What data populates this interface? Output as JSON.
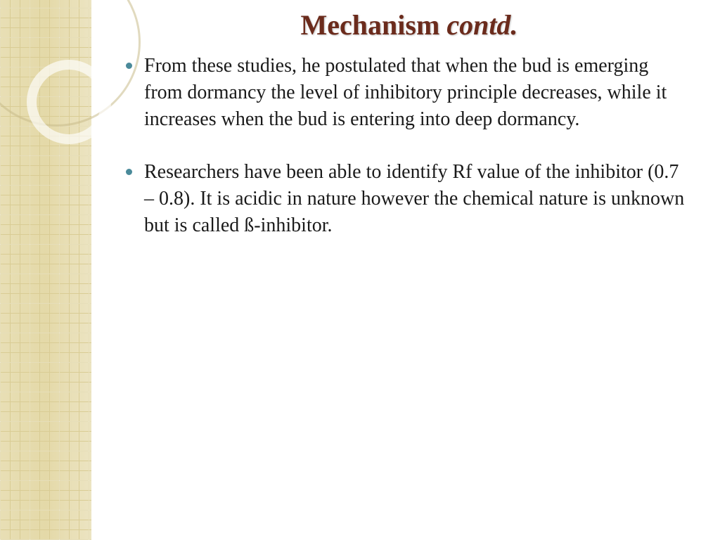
{
  "title": {
    "main": "Mechanism",
    "sub": "contd.",
    "color": "#6b2b1c",
    "fontsize": 40
  },
  "bullets": [
    "From these studies, he postulated that when the bud is emerging from dormancy the level of inhibitory principle decreases, while it increases when the bud is entering into deep dormancy.",
    "Researchers have been able to identify Rf value of the inhibitor (0.7 – 0.8). It is acidic in nature however the chemical nature is unknown but is called ß-inhibitor."
  ],
  "style": {
    "bullet_color": "#4a8a9a",
    "text_color": "#1a1a1a",
    "body_fontsize": 28,
    "sidebar_bg": "#e6dcae",
    "sidebar_grid": "#d9cc94",
    "page_bg": "#ffffff"
  }
}
